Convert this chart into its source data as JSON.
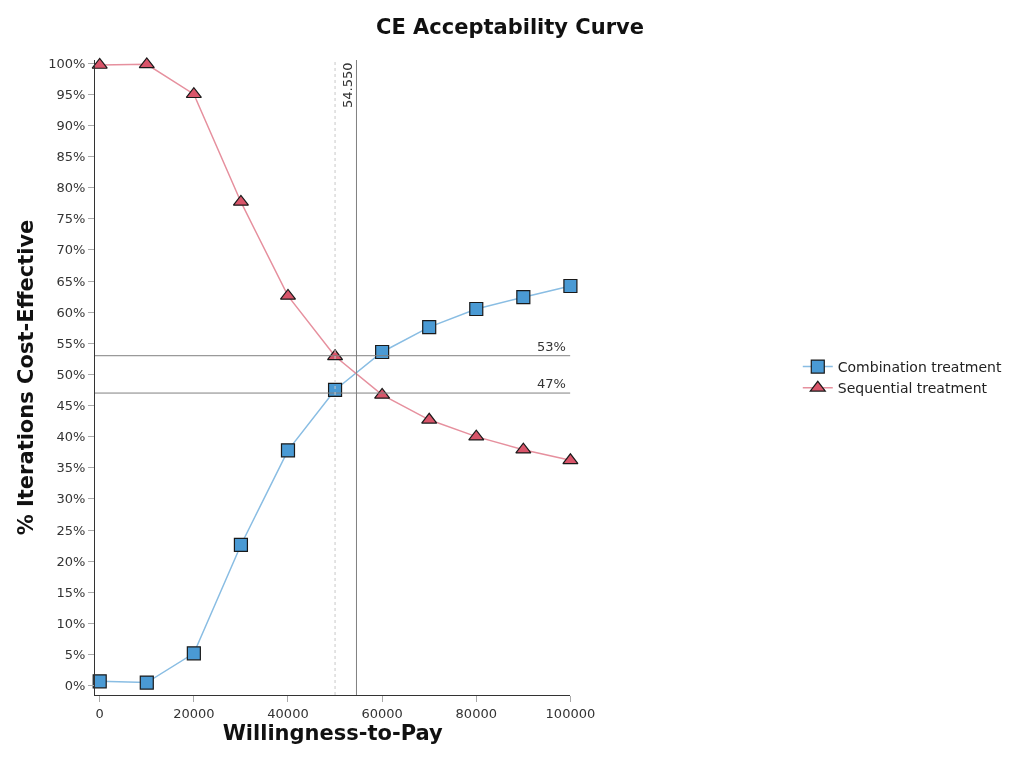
{
  "chart_data": {
    "type": "line",
    "title": "CE Acceptability Curve",
    "xlabel": "Willingness-to-Pay",
    "ylabel": "% Iterations Cost-Effective",
    "x": [
      0,
      10000,
      20000,
      30000,
      40000,
      50000,
      60000,
      70000,
      80000,
      90000,
      100000
    ],
    "series": [
      {
        "name": "Combination treatment",
        "color": "#4a9ad4",
        "marker": "square",
        "values": [
          0.7,
          0.5,
          5.2,
          22.6,
          37.8,
          47.5,
          53.6,
          57.6,
          60.5,
          62.4,
          64.2
        ]
      },
      {
        "name": "Sequential treatment",
        "color": "#d9556a",
        "marker": "triangle",
        "values": [
          99.7,
          99.8,
          95.0,
          77.7,
          62.6,
          52.9,
          46.7,
          42.7,
          40.0,
          37.9,
          36.2
        ]
      }
    ],
    "xlim": [
      -1000,
      100000
    ],
    "ylim": [
      -1.5,
      100.5
    ],
    "xticks": [
      0,
      20000,
      40000,
      60000,
      80000,
      100000
    ],
    "yticks": [
      {
        "value": 0,
        "label": "0%"
      },
      {
        "value": 5,
        "label": "5%"
      },
      {
        "value": 10,
        "label": "10%"
      },
      {
        "value": 15,
        "label": "15%"
      },
      {
        "value": 20,
        "label": "20%"
      },
      {
        "value": 25,
        "label": "25%"
      },
      {
        "value": 30,
        "label": "30%"
      },
      {
        "value": 35,
        "label": "35%"
      },
      {
        "value": 40,
        "label": "40%"
      },
      {
        "value": 45,
        "label": "45%"
      },
      {
        "value": 50,
        "label": "50%"
      },
      {
        "value": 55,
        "label": "55%"
      },
      {
        "value": 60,
        "label": "60%"
      },
      {
        "value": 65,
        "label": "65%"
      },
      {
        "value": 70,
        "label": "70%"
      },
      {
        "value": 75,
        "label": "75%"
      },
      {
        "value": 80,
        "label": "80%"
      },
      {
        "value": 85,
        "label": "85%"
      },
      {
        "value": 90,
        "label": "90%"
      },
      {
        "value": 95,
        "label": "95%"
      },
      {
        "value": 100,
        "label": "100%"
      }
    ],
    "ref_lines": [
      {
        "axis": "y",
        "value": 53,
        "label": "53%",
        "color": "#808080",
        "line_style": "solid"
      },
      {
        "axis": "y",
        "value": 47,
        "label": "47%",
        "color": "#808080",
        "line_style": "solid"
      },
      {
        "axis": "x",
        "value": 54550,
        "label": "54.550",
        "color": "#808080",
        "line_style": "solid"
      },
      {
        "axis": "x",
        "value": 50000,
        "color": "#c8c8c8",
        "line_style": "dotted"
      }
    ],
    "legend": "right",
    "line_style": "solid"
  }
}
